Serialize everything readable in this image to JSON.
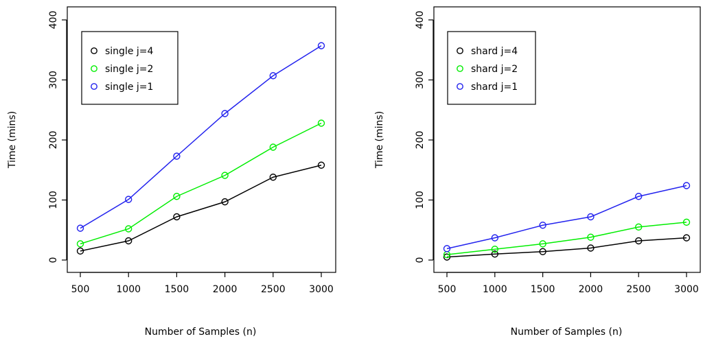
{
  "chart_data": [
    {
      "type": "line",
      "xlabel": "Number of Samples (n)",
      "ylabel": "Time (mins)",
      "xlim": [
        500,
        3000
      ],
      "ylim": [
        0,
        400
      ],
      "xticks": [
        500,
        1000,
        1500,
        2000,
        2500,
        3000
      ],
      "yticks": [
        0,
        100,
        200,
        300,
        400
      ],
      "legend_position": "top-left",
      "grid": false,
      "x": [
        500,
        1000,
        1500,
        2000,
        2500,
        3000
      ],
      "series": [
        {
          "name": "single j=4",
          "color": "#000000",
          "values": [
            15,
            32,
            72,
            97,
            138,
            158
          ]
        },
        {
          "name": "single j=2",
          "color": "#00ee00",
          "values": [
            27,
            52,
            106,
            141,
            188,
            228
          ]
        },
        {
          "name": "single j=1",
          "color": "#2222ee",
          "values": [
            53,
            101,
            173,
            244,
            307,
            357
          ]
        }
      ]
    },
    {
      "type": "line",
      "xlabel": "Number of Samples (n)",
      "ylabel": "Time (mins)",
      "xlim": [
        500,
        3000
      ],
      "ylim": [
        0,
        400
      ],
      "xticks": [
        500,
        1000,
        1500,
        2000,
        2500,
        3000
      ],
      "yticks": [
        0,
        100,
        200,
        300,
        400
      ],
      "legend_position": "top-left",
      "grid": false,
      "x": [
        500,
        1000,
        1500,
        2000,
        2500,
        3000
      ],
      "series": [
        {
          "name": "shard j=4",
          "color": "#000000",
          "values": [
            5,
            10,
            14,
            20,
            32,
            37
          ]
        },
        {
          "name": "shard j=2",
          "color": "#00ee00",
          "values": [
            9,
            18,
            27,
            38,
            55,
            63
          ]
        },
        {
          "name": "shard j=1",
          "color": "#2222ee",
          "values": [
            19,
            37,
            58,
            72,
            106,
            124
          ]
        }
      ]
    }
  ]
}
